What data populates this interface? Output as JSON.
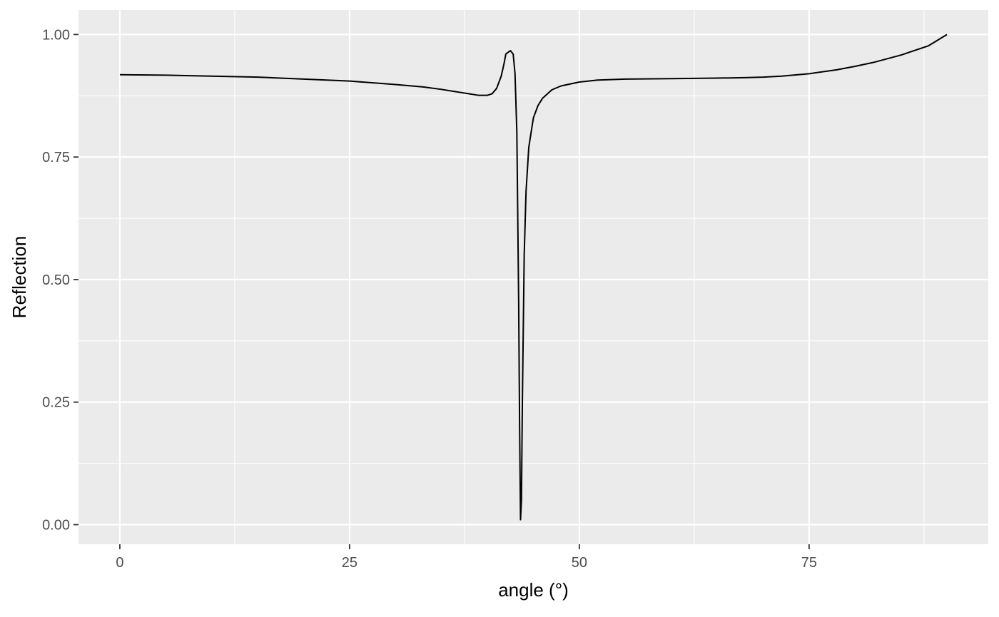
{
  "chart_data": {
    "type": "line",
    "title": "",
    "xlabel": "angle (°)",
    "ylabel": "Reflection",
    "xlim": [
      -4.5,
      94.5
    ],
    "ylim": [
      -0.04,
      1.05
    ],
    "x_ticks": [
      0,
      25,
      50,
      75
    ],
    "x_tick_labels": [
      "0",
      "25",
      "50",
      "75"
    ],
    "x_minor_ticks": [
      12.5,
      37.5,
      62.5,
      87.5
    ],
    "y_ticks": [
      0,
      0.25,
      0.5,
      0.75,
      1.0
    ],
    "y_tick_labels": [
      "0.00",
      "0.25",
      "0.50",
      "0.75",
      "1.00"
    ],
    "y_minor_ticks": [
      0.125,
      0.375,
      0.625,
      0.875
    ],
    "grid": true,
    "legend": "none",
    "colors": {
      "panel_background": "#ebebeb",
      "grid_line": "#ffffff",
      "series_line": "#000000",
      "tick_mark": "#333333"
    },
    "series": [
      {
        "x": [
          0,
          5,
          10,
          15,
          20,
          25,
          30,
          33,
          35,
          37,
          38,
          39,
          40,
          40.5,
          41,
          41.5,
          41.8,
          42,
          42.2,
          42.5,
          42.8,
          43,
          43.2,
          43.4,
          43.5,
          43.6,
          43.7,
          43.8,
          44,
          44.2,
          44.5,
          45,
          45.5,
          46,
          47,
          48,
          50,
          52,
          55,
          60,
          65,
          68,
          70,
          72,
          75,
          78,
          80,
          82,
          85,
          88,
          90
        ],
        "y": [
          0.918,
          0.917,
          0.915,
          0.913,
          0.909,
          0.905,
          0.898,
          0.893,
          0.888,
          0.882,
          0.879,
          0.876,
          0.876,
          0.879,
          0.89,
          0.915,
          0.94,
          0.96,
          0.963,
          0.967,
          0.96,
          0.92,
          0.8,
          0.45,
          0.2,
          0.01,
          0.05,
          0.25,
          0.55,
          0.68,
          0.77,
          0.83,
          0.855,
          0.87,
          0.887,
          0.895,
          0.903,
          0.907,
          0.909,
          0.91,
          0.911,
          0.912,
          0.913,
          0.915,
          0.92,
          0.928,
          0.935,
          0.943,
          0.958,
          0.977,
          1.0
        ]
      }
    ]
  }
}
